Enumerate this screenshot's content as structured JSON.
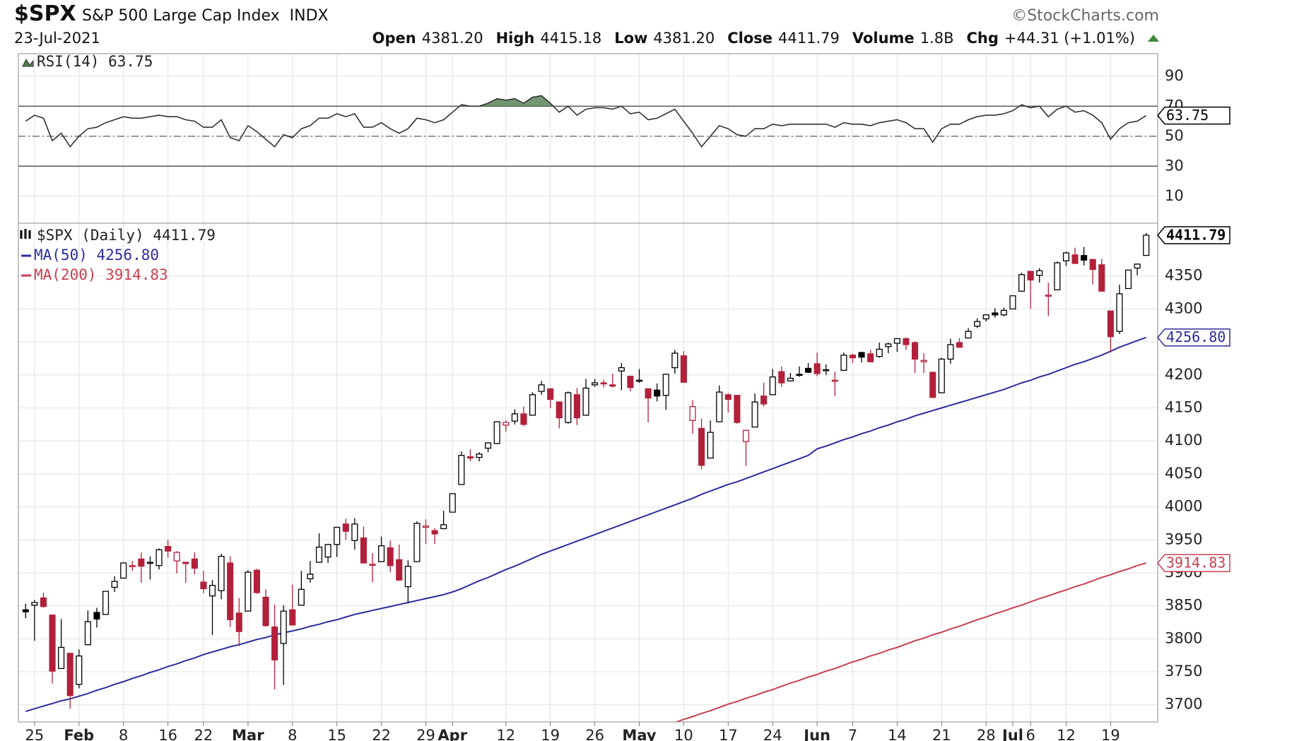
{
  "header": {
    "symbol": "$SPX",
    "name": "S&P 500 Large Cap Index",
    "exchange": "INDX",
    "source": "©StockCharts.com",
    "date": "23-Jul-2021",
    "quote": [
      {
        "label": "Open",
        "value": "4381.20"
      },
      {
        "label": "High",
        "value": "4415.18"
      },
      {
        "label": "Low",
        "value": "4381.20"
      },
      {
        "label": "Close",
        "value": "4411.79"
      },
      {
        "label": "Volume",
        "value": "1.8B"
      },
      {
        "label": "Chg",
        "value": "+44.31 (+1.01%)"
      }
    ]
  },
  "chart_data": [
    {
      "type": "line",
      "legend": "RSI(14) 63.75",
      "last_label": "63.75",
      "color": "#333333",
      "fill_color": "#4f7d4f",
      "values": [
        60,
        64,
        62,
        47,
        52,
        43,
        50,
        55,
        56,
        59,
        61,
        63,
        62,
        62,
        63,
        64,
        63,
        63,
        61,
        60,
        56,
        56,
        61,
        49,
        47,
        57,
        53,
        48,
        43,
        51,
        49,
        55,
        57,
        62,
        62,
        65,
        63,
        65,
        56,
        56,
        59,
        55,
        52,
        55,
        62,
        61,
        59,
        61,
        66,
        71,
        70,
        70,
        72,
        75,
        74,
        75,
        72,
        76,
        77,
        72,
        66,
        70,
        64,
        68,
        69,
        69,
        68,
        70,
        65,
        66,
        61,
        62,
        65,
        68,
        60,
        52,
        43,
        50,
        57,
        55,
        51,
        50,
        55,
        55,
        58,
        57,
        58,
        58,
        58,
        58,
        58,
        56,
        59,
        58,
        58,
        57,
        59,
        60,
        61,
        59,
        55,
        55,
        46,
        55,
        58,
        58,
        61,
        63,
        64,
        64,
        65,
        67,
        71,
        69,
        70,
        63,
        68,
        70,
        66,
        67,
        64,
        59,
        48,
        55,
        59,
        60,
        63.75
      ],
      "ylim": [
        -8,
        105
      ],
      "yticks": [
        10,
        30,
        50,
        70,
        90
      ],
      "overbought": 70,
      "oversold": 30,
      "midline": 50,
      "grid": true
    },
    {
      "type": "candlestick",
      "legend": "$SPX (Daily) 4411.79",
      "last_label": "4411.79",
      "up_color": "#000000",
      "down_color": "#b2203a",
      "categories": [
        null,
        "25",
        null,
        null,
        null,
        null,
        "Feb",
        null,
        null,
        null,
        null,
        "8",
        null,
        null,
        null,
        null,
        "16",
        null,
        null,
        null,
        "22",
        null,
        null,
        null,
        null,
        "Mar",
        null,
        null,
        null,
        null,
        "8",
        null,
        null,
        null,
        null,
        "15",
        null,
        null,
        null,
        null,
        "22",
        null,
        null,
        null,
        null,
        "29",
        null,
        null,
        "Apr",
        null,
        null,
        null,
        null,
        null,
        "12",
        null,
        null,
        null,
        null,
        "19",
        null,
        null,
        null,
        null,
        "26",
        null,
        null,
        null,
        null,
        "May",
        null,
        null,
        null,
        null,
        "10",
        null,
        null,
        null,
        null,
        "17",
        null,
        null,
        null,
        null,
        "24",
        null,
        null,
        null,
        null,
        "Jun",
        null,
        null,
        null,
        "7",
        null,
        null,
        null,
        null,
        "14",
        null,
        null,
        null,
        null,
        "21",
        null,
        null,
        null,
        null,
        "28",
        null,
        null,
        "Jul",
        null,
        "6",
        null,
        null,
        null,
        "12",
        null,
        null,
        null,
        null,
        "19",
        null,
        null,
        null,
        null
      ],
      "candles": {
        "open": [
          3844,
          3851,
          3862,
          3836,
          3755,
          3778,
          3731,
          3791,
          3840,
          3837,
          3878,
          3892,
          3911,
          3921,
          3916,
          3911,
          3940,
          3918,
          3916,
          3921,
          3886,
          3865,
          3873,
          3915,
          3839,
          3842,
          3904,
          3863,
          3818,
          3793,
          3844,
          3851,
          3891,
          3916,
          3924,
          3943,
          3974,
          3949,
          3953,
          3913,
          3917,
          3938,
          3920,
          3879,
          3917,
          3969,
          3964,
          3967,
          3992,
          4034,
          4076,
          4075,
          4089,
          4096,
          4124,
          4130,
          4141,
          4139,
          4175,
          4179,
          4159,
          4128,
          4170,
          4139,
          4185,
          4188,
          4185,
          4206,
          4198,
          4191,
          4179,
          4177,
          4169,
          4211,
          4229,
          4131,
          4119,
          4074,
          4129,
          4170,
          4169,
          4099,
          4121,
          4168,
          4170,
          4205,
          4191,
          4201,
          4210,
          4217,
          4207,
          4191,
          4207,
          4230,
          4234,
          4232,
          4228,
          4243,
          4248,
          4255,
          4249,
          4220,
          4204,
          4173,
          4224,
          4249,
          4256,
          4274,
          4285,
          4294,
          4291,
          4300,
          4327,
          4357,
          4351,
          4321,
          4329,
          4373,
          4382,
          4381,
          4375,
          4367,
          4297,
          4266,
          4331,
          4362,
          4381.2
        ],
        "high": [
          3853,
          3859,
          3870,
          3836,
          3830,
          3779,
          3784,
          3843,
          3847,
          3872,
          3895,
          3916,
          3918,
          3931,
          3925,
          3937,
          3950,
          3933,
          3916,
          3931,
          3903,
          3889,
          3929,
          3925,
          3862,
          3904,
          3906,
          3875,
          3852,
          3851,
          3882,
          3903,
          3918,
          3960,
          3944,
          3970,
          3982,
          3983,
          3970,
          3930,
          3955,
          3949,
          3943,
          3919,
          3978,
          3981,
          3968,
          3994,
          4020,
          4084,
          4087,
          4083,
          4098,
          4129,
          4131,
          4148,
          4152,
          4174,
          4191,
          4180,
          4160,
          4175,
          4180,
          4194,
          4194,
          4193,
          4202,
          4218,
          4199,
          4209,
          4179,
          4187,
          4202,
          4238,
          4236,
          4162,
          4134,
          4131,
          4184,
          4172,
          4170,
          4117,
          4172,
          4188,
          4209,
          4213,
          4203,
          4213,
          4218,
          4234,
          4216,
          4205,
          4234,
          4232,
          4235,
          4238,
          4249,
          4249,
          4255,
          4257,
          4251,
          4233,
          4205,
          4226,
          4255,
          4256,
          4271,
          4286,
          4292,
          4301,
          4302,
          4320,
          4355,
          4358,
          4362,
          4340,
          4372,
          4387,
          4393,
          4394,
          4376,
          4376,
          4297,
          4337,
          4359,
          4369,
          4415.18
        ],
        "low": [
          3831,
          3797,
          3847,
          3732,
          3755,
          3694,
          3725,
          3791,
          3817,
          3837,
          3871,
          3892,
          3903,
          3885,
          3890,
          3905,
          3923,
          3899,
          3885,
          3898,
          3869,
          3806,
          3860,
          3818,
          3789,
          3842,
          3868,
          3818,
          3723,
          3730,
          3820,
          3851,
          3885,
          3916,
          3915,
          3924,
          3950,
          3935,
          3914,
          3886,
          3917,
          3901,
          3888,
          3854,
          3917,
          3944,
          3944,
          3966,
          3992,
          4034,
          4069,
          4069,
          4083,
          4096,
          4114,
          4125,
          4122,
          4139,
          4170,
          4150,
          4119,
          4126,
          4124,
          4139,
          4182,
          4181,
          4181,
          4177,
          4175,
          4188,
          4128,
          4160,
          4147,
          4202,
          4188,
          4111,
          4057,
          4074,
          4129,
          4143,
          4126,
          4062,
          4121,
          4152,
          4170,
          4182,
          4190,
          4197,
          4203,
          4198,
          4200,
          4168,
          4206,
          4218,
          4219,
          4219,
          4226,
          4233,
          4235,
          4238,
          4203,
          4203,
          4165,
          4173,
          4217,
          4241,
          4256,
          4271,
          4281,
          4287,
          4289,
          4300,
          4326,
          4300,
          4340,
          4289,
          4329,
          4365,
          4369,
          4366,
          4337,
          4326,
          4234,
          4262,
          4331,
          4351,
          4381.2
        ],
        "close": [
          3841,
          3855,
          3849,
          3751,
          3787,
          3714,
          3774,
          3826,
          3830,
          3872,
          3887,
          3915,
          3911,
          3910,
          3916,
          3935,
          3933,
          3931,
          3914,
          3907,
          3876,
          3881,
          3925,
          3829,
          3811,
          3901,
          3870,
          3820,
          3768,
          3842,
          3821,
          3875,
          3898,
          3939,
          3943,
          3969,
          3963,
          3974,
          3915,
          3913,
          3941,
          3911,
          3889,
          3910,
          3975,
          3971,
          3959,
          3973,
          4020,
          4078,
          4074,
          4080,
          4097,
          4129,
          4128,
          4141,
          4125,
          4170,
          4185,
          4163,
          4135,
          4173,
          4135,
          4180,
          4188,
          4187,
          4183,
          4211,
          4181,
          4192,
          4165,
          4168,
          4201,
          4233,
          4189,
          4152,
          4063,
          4113,
          4174,
          4163,
          4128,
          4116,
          4159,
          4156,
          4197,
          4188,
          4195,
          4200,
          4204,
          4202,
          4208,
          4192,
          4230,
          4226,
          4227,
          4220,
          4239,
          4247,
          4255,
          4246,
          4224,
          4222,
          4166,
          4224,
          4246,
          4242,
          4266,
          4281,
          4291,
          4291,
          4298,
          4320,
          4352,
          4344,
          4358,
          4321,
          4370,
          4385,
          4369,
          4374,
          4360,
          4327,
          4258,
          4323,
          4359,
          4368,
          4411.79
        ]
      },
      "series": [
        {
          "name": "MA(50) 4256.80",
          "last_label": "4256.80",
          "color": "#2c2ca0",
          "values": [
            3690,
            3694,
            3698,
            3702,
            3706,
            3709,
            3713,
            3717,
            3722,
            3726,
            3731,
            3735,
            3740,
            3744,
            3749,
            3753,
            3758,
            3762,
            3767,
            3771,
            3776,
            3780,
            3784,
            3788,
            3791,
            3795,
            3799,
            3802,
            3806,
            3809,
            3812,
            3815,
            3819,
            3822,
            3826,
            3829,
            3833,
            3837,
            3840,
            3843,
            3846,
            3849,
            3852,
            3855,
            3858,
            3861,
            3864,
            3867,
            3871,
            3876,
            3882,
            3888,
            3893,
            3899,
            3905,
            3910,
            3916,
            3922,
            3928,
            3933,
            3938,
            3943,
            3948,
            3953,
            3958,
            3963,
            3968,
            3973,
            3978,
            3983,
            3988,
            3993,
            3998,
            4003,
            4008,
            4013,
            4019,
            4024,
            4029,
            4034,
            4038,
            4043,
            4048,
            4053,
            4058,
            4063,
            4068,
            4073,
            4078,
            4088,
            4092,
            4097,
            4102,
            4106,
            4111,
            4115,
            4120,
            4124,
            4129,
            4133,
            4138,
            4142,
            4146,
            4150,
            4154,
            4158,
            4162,
            4166,
            4170,
            4174,
            4178,
            4183,
            4188,
            4192,
            4197,
            4201,
            4206,
            4211,
            4216,
            4220,
            4225,
            4230,
            4236,
            4242,
            4247,
            4252,
            4256.8
          ]
        },
        {
          "name": "MA(200) 3914.83",
          "last_label": "3914.83",
          "color": "#c8404f",
          "values": [
            null,
            null,
            null,
            null,
            null,
            null,
            null,
            null,
            null,
            null,
            null,
            null,
            null,
            null,
            null,
            null,
            null,
            null,
            null,
            null,
            null,
            null,
            null,
            null,
            null,
            null,
            null,
            null,
            null,
            null,
            null,
            null,
            null,
            null,
            null,
            null,
            null,
            null,
            null,
            null,
            null,
            null,
            null,
            null,
            null,
            null,
            null,
            null,
            null,
            null,
            null,
            null,
            null,
            null,
            null,
            null,
            null,
            null,
            null,
            null,
            null,
            null,
            null,
            null,
            null,
            null,
            null,
            null,
            null,
            null,
            null,
            null,
            null,
            3673,
            3678,
            3682,
            3687,
            3691,
            3696,
            3701,
            3705,
            3710,
            3714,
            3719,
            3723,
            3728,
            3733,
            3737,
            3742,
            3746,
            3751,
            3755,
            3760,
            3765,
            3769,
            3774,
            3778,
            3783,
            3787,
            3792,
            3797,
            3801,
            3806,
            3810,
            3815,
            3819,
            3824,
            3829,
            3833,
            3838,
            3842,
            3847,
            3851,
            3856,
            3861,
            3865,
            3870,
            3874,
            3879,
            3883,
            3888,
            3893,
            3897,
            3902,
            3906,
            3911,
            3914.83
          ]
        }
      ],
      "ylim": [
        3674,
        4430
      ],
      "yticks": [
        3700,
        3750,
        3800,
        3850,
        3900,
        3950,
        4000,
        4050,
        4100,
        4150,
        4200,
        4250,
        4300,
        4350
      ],
      "grid": true
    }
  ]
}
